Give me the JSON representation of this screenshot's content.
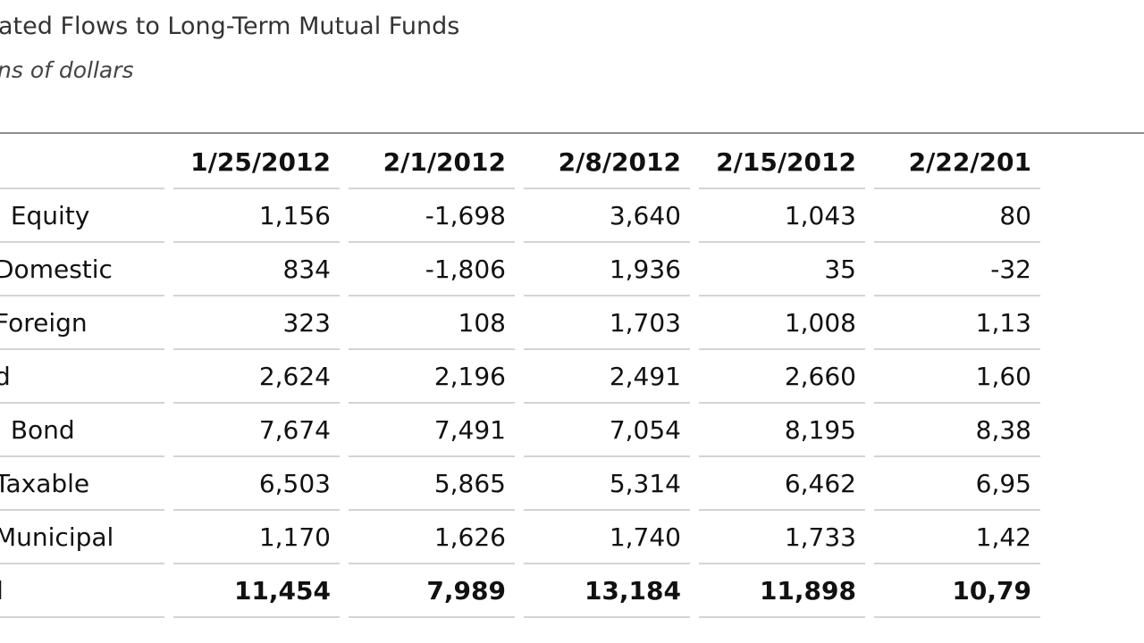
{
  "title": "ated Flows to Long-Term Mutual Funds",
  "subtitle": "ns of dollars",
  "table": {
    "columns": [
      "1/25/2012",
      "2/1/2012",
      "2/8/2012",
      "2/15/2012",
      "2/22/201"
    ],
    "rows": [
      {
        "label": "Equity",
        "values": [
          "1,156",
          "-1,698",
          "3,640",
          "1,043",
          "80"
        ]
      },
      {
        "label": "Domestic",
        "values": [
          "834",
          "-1,806",
          "1,936",
          "35",
          "-32"
        ]
      },
      {
        "label": "Foreign",
        "values": [
          "323",
          "108",
          "1,703",
          "1,008",
          "1,13"
        ]
      },
      {
        "label": "d",
        "values": [
          "2,624",
          "2,196",
          "2,491",
          "2,660",
          "1,60"
        ]
      },
      {
        "label": "Bond",
        "values": [
          "7,674",
          "7,491",
          "7,054",
          "8,195",
          "8,38"
        ]
      },
      {
        "label": "Taxable",
        "values": [
          "6,503",
          "5,865",
          "5,314",
          "6,462",
          "6,95"
        ]
      },
      {
        "label": "Municipal",
        "values": [
          "1,170",
          "1,626",
          "1,740",
          "1,733",
          "1,42"
        ]
      },
      {
        "label": "l",
        "values": [
          "11,454",
          "7,989",
          "13,184",
          "11,898",
          "10,79"
        ],
        "total": true
      }
    ]
  }
}
